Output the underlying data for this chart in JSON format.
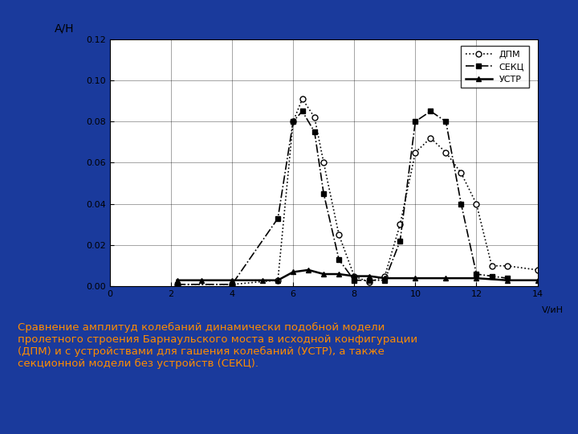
{
  "caption": "Сравнение амплитуд колебаний динамически подобной модели\nпролетного строения Барнаульского моста в исходной конфигурации\n(ДПМ) и с устройствами для гашения колебаний (УСТР), а также\nсекционной модели без устройств (СЕКЦ).",
  "ylabel": "A/H",
  "xlim": [
    0,
    14
  ],
  "ylim": [
    0.0,
    0.12
  ],
  "xticks": [
    0,
    2,
    4,
    6,
    8,
    10,
    12,
    14
  ],
  "yticks": [
    0.0,
    0.02,
    0.04,
    0.06,
    0.08,
    0.1,
    0.12
  ],
  "background_color": "#ffffff",
  "outer_background": "#1a3a9c",
  "caption_color": "#ff8c00",
  "DPM_x": [
    2.2,
    4.0,
    5.5,
    6.0,
    6.3,
    6.7,
    7.0,
    7.5,
    8.0,
    8.5,
    9.0,
    9.5,
    10.0,
    10.5,
    11.0,
    11.5,
    12.0,
    12.5,
    13.0,
    14.0
  ],
  "DPM_y": [
    0.001,
    0.001,
    0.003,
    0.08,
    0.091,
    0.082,
    0.06,
    0.025,
    0.005,
    0.002,
    0.005,
    0.03,
    0.065,
    0.072,
    0.065,
    0.055,
    0.04,
    0.01,
    0.01,
    0.008
  ],
  "SEKC_x": [
    2.2,
    4.0,
    5.5,
    6.0,
    6.3,
    6.7,
    7.0,
    7.5,
    8.0,
    8.5,
    9.0,
    9.5,
    10.0,
    10.5,
    11.0,
    11.5,
    12.0,
    12.5,
    13.0
  ],
  "SEKC_y": [
    0.001,
    0.001,
    0.033,
    0.08,
    0.085,
    0.075,
    0.045,
    0.013,
    0.003,
    0.003,
    0.003,
    0.022,
    0.08,
    0.085,
    0.08,
    0.04,
    0.006,
    0.005,
    0.004
  ],
  "USTR_x": [
    2.2,
    3.0,
    4.0,
    5.0,
    5.5,
    6.0,
    6.5,
    7.0,
    7.5,
    8.0,
    8.5,
    9.0,
    10.0,
    11.0,
    12.0,
    13.0,
    14.0
  ],
  "USTR_y": [
    0.003,
    0.003,
    0.003,
    0.003,
    0.003,
    0.007,
    0.008,
    0.006,
    0.006,
    0.005,
    0.005,
    0.004,
    0.004,
    0.004,
    0.004,
    0.003,
    0.003
  ],
  "legend_labels": [
    "ДПМ",
    "СЕКЦ",
    "УСТР"
  ]
}
